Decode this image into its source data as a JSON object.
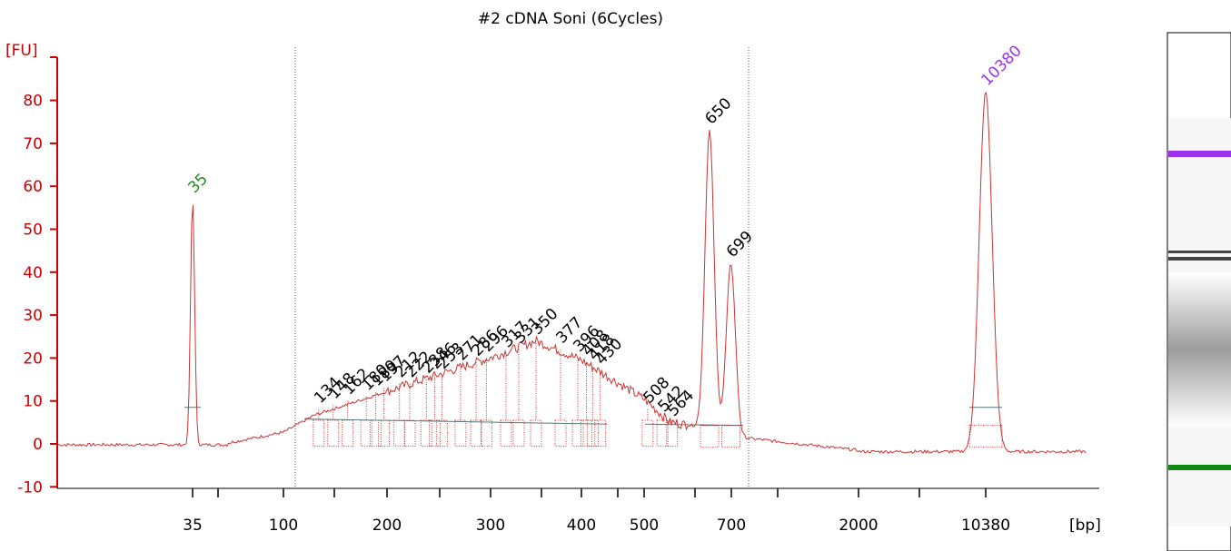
{
  "chart_data": {
    "type": "line",
    "title": "#2 cDNA Soni (6Cycles)",
    "ylabel": "[FU]",
    "xlabel": "[bp]",
    "ylim": [
      -10,
      85
    ],
    "yticks": [
      -10,
      0,
      10,
      20,
      30,
      40,
      50,
      60,
      70,
      80
    ],
    "xticks": [
      "35",
      "100",
      "200",
      "300",
      "400",
      "500",
      "700",
      "2000",
      "10380"
    ],
    "x_scale": "electrophoresis size (non-linear)",
    "colors": {
      "trace": "#cc3333",
      "axis": "#cc0000",
      "marker_lower": "#228822",
      "marker_upper": "#9933ee",
      "peak_label": "#000000"
    },
    "series": [
      {
        "values": [
          {
            "x": 35,
            "y": 57
          },
          {
            "x": 100,
            "y": 3
          },
          {
            "x": 200,
            "y": 14
          },
          {
            "x": 300,
            "y": 21
          },
          {
            "x": 350,
            "y": 24
          },
          {
            "x": 400,
            "y": 18
          },
          {
            "x": 500,
            "y": 8
          },
          {
            "x": 650,
            "y": 73
          },
          {
            "x": 699,
            "y": 42
          },
          {
            "x": 2000,
            "y": -1
          },
          {
            "x": 10380,
            "y": 82
          }
        ]
      }
    ],
    "peaks": [
      {
        "label": "35",
        "size": 35,
        "fu": 57,
        "color": "#228822"
      },
      {
        "label": "134",
        "size": 134,
        "fu": 8
      },
      {
        "label": "148",
        "size": 148,
        "fu": 9
      },
      {
        "label": "162",
        "size": 162,
        "fu": 10
      },
      {
        "label": "180",
        "size": 180,
        "fu": 11
      },
      {
        "label": "189",
        "size": 189,
        "fu": 12
      },
      {
        "label": "197",
        "size": 197,
        "fu": 13
      },
      {
        "label": "212",
        "size": 212,
        "fu": 14
      },
      {
        "label": "222",
        "size": 222,
        "fu": 14
      },
      {
        "label": "238",
        "size": 238,
        "fu": 15
      },
      {
        "label": "246",
        "size": 246,
        "fu": 16
      },
      {
        "label": "253",
        "size": 253,
        "fu": 16
      },
      {
        "label": "271",
        "size": 271,
        "fu": 18
      },
      {
        "label": "286",
        "size": 286,
        "fu": 19
      },
      {
        "label": "296",
        "size": 296,
        "fu": 20
      },
      {
        "label": "317",
        "size": 317,
        "fu": 21
      },
      {
        "label": "331",
        "size": 331,
        "fu": 22
      },
      {
        "label": "350",
        "size": 350,
        "fu": 24
      },
      {
        "label": "377",
        "size": 377,
        "fu": 22
      },
      {
        "label": "396",
        "size": 396,
        "fu": 20
      },
      {
        "label": "408",
        "size": 408,
        "fu": 19
      },
      {
        "label": "418",
        "size": 418,
        "fu": 18
      },
      {
        "label": "430",
        "size": 430,
        "fu": 17
      },
      {
        "label": "508",
        "size": 508,
        "fu": 8
      },
      {
        "label": "542",
        "size": 542,
        "fu": 6
      },
      {
        "label": "564",
        "size": 564,
        "fu": 5
      },
      {
        "label": "650",
        "size": 650,
        "fu": 73
      },
      {
        "label": "699",
        "size": 699,
        "fu": 42
      },
      {
        "label": "10380",
        "size": 10380,
        "fu": 82,
        "color": "#9933ee"
      }
    ],
    "grid": false,
    "legend": "none"
  },
  "gel": {
    "bands": [
      {
        "name": "upper-marker",
        "color": "#9933ee"
      },
      {
        "name": "650-699-doublet",
        "color": "#444444"
      },
      {
        "name": "smear",
        "color": "#aaaaaa"
      },
      {
        "name": "lower-marker",
        "color": "#118811"
      }
    ]
  }
}
